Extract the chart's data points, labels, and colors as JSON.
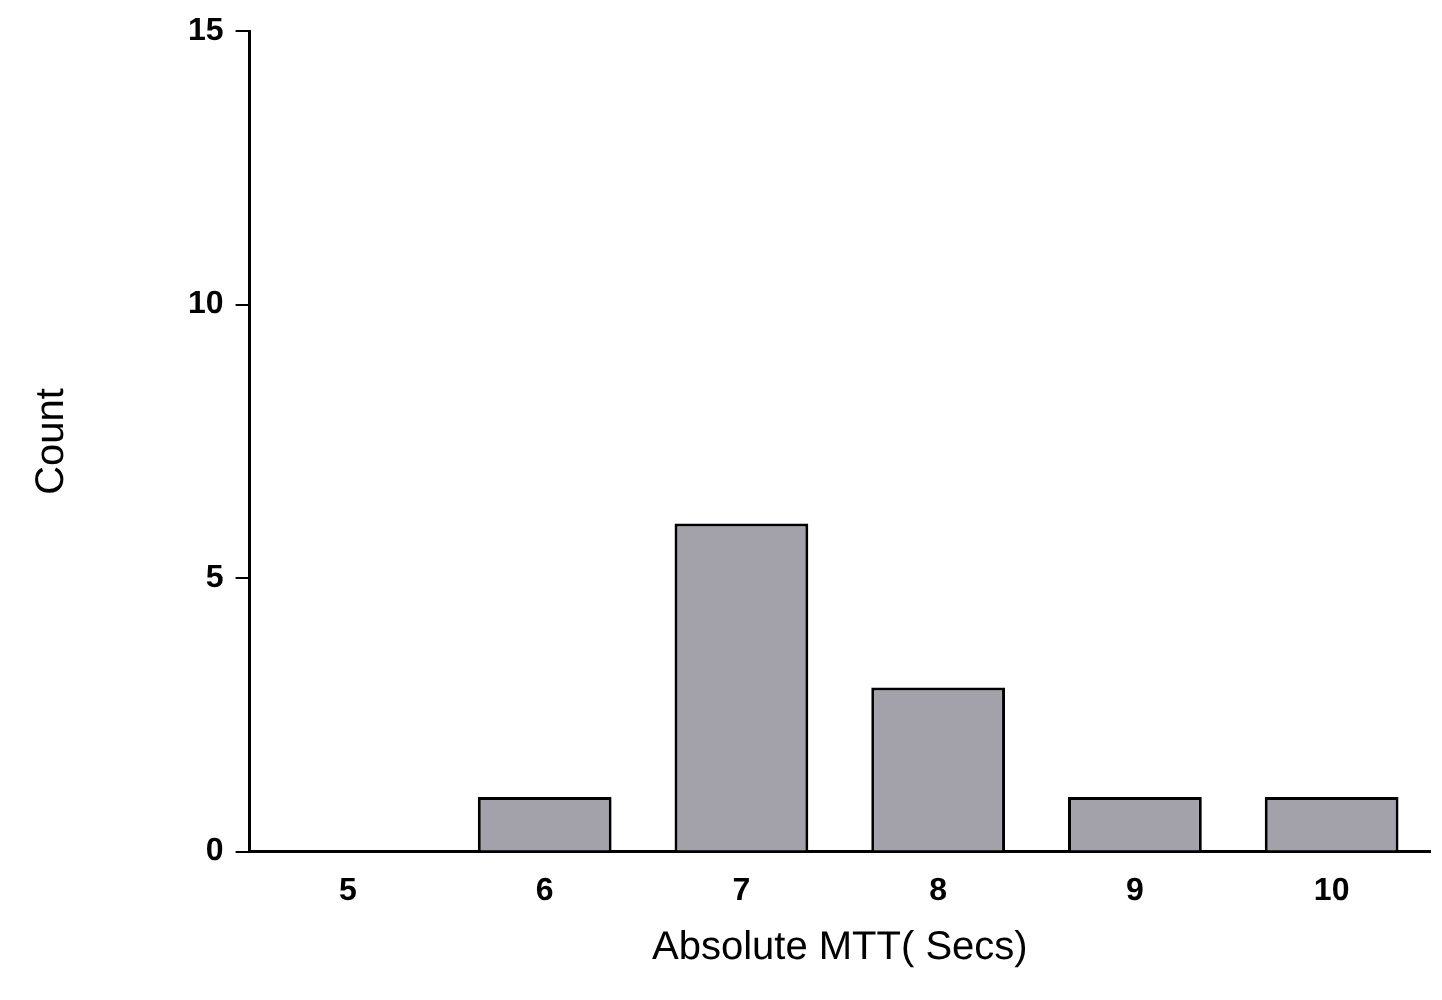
{
  "chart_data": {
    "type": "bar",
    "xlabel": "Absolute MTT( Secs)",
    "ylabel": "Count",
    "categories": [
      "5",
      "6",
      "7",
      "8",
      "9",
      "10"
    ],
    "values": [
      0,
      1,
      6,
      3,
      1,
      1
    ],
    "color": "#a3a2aa",
    "ylim": [
      0,
      15
    ],
    "yticks": [
      0,
      5,
      10,
      15
    ],
    "grid": false,
    "legend": false
  }
}
